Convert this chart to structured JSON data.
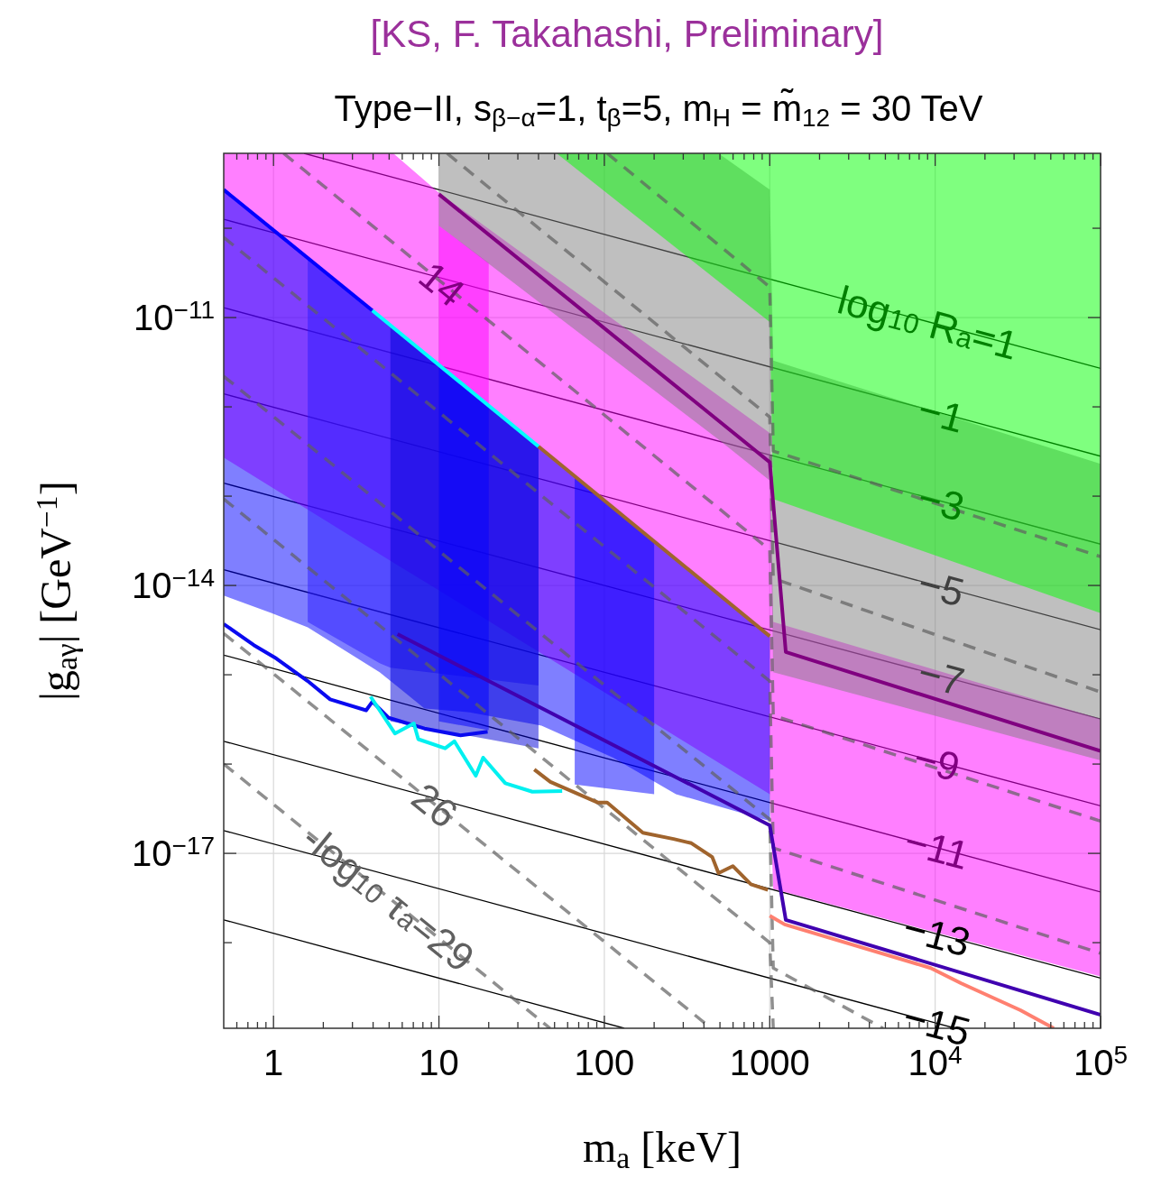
{
  "chart_data": {
    "type": "line",
    "title": "[KS, F. Takahashi, Preliminary]",
    "subtitle": "Type−II, s$_{β−α}$=1, t$_{β}$=5, m$_{H}$ = m̃$_{12}$ = 30 TeV",
    "xlabel": "m$_{a}$ [keV]",
    "ylabel": "|g$_{aγ}$| [GeV$^{−1}$]",
    "log": "xy",
    "grid": true,
    "xlim": [
      0.5,
      100000
    ],
    "ylim": [
      1.1e-19,
      6.9e-10
    ],
    "xticks": [
      {
        "value": 0.6,
        "label": null
      },
      {
        "value": 0.7,
        "label": null
      },
      {
        "value": 0.8,
        "label": null
      },
      {
        "value": 0.9,
        "label": null
      },
      1,
      {
        "value": 2,
        "label": null
      },
      {
        "value": 3,
        "label": null
      },
      {
        "value": 4,
        "label": null
      },
      {
        "value": 5,
        "label": null
      },
      {
        "value": 6,
        "label": null
      },
      {
        "value": 7,
        "label": null
      },
      {
        "value": 8,
        "label": null
      },
      {
        "value": 9,
        "label": null
      },
      10,
      {
        "value": 20,
        "label": null
      },
      {
        "value": 30,
        "label": null
      },
      {
        "value": 40,
        "label": null
      },
      {
        "value": 50,
        "label": null
      },
      {
        "value": 60,
        "label": null
      },
      {
        "value": 70,
        "label": null
      },
      {
        "value": 80,
        "label": null
      },
      {
        "value": 90,
        "label": null
      },
      100,
      {
        "value": 200,
        "label": null
      },
      {
        "value": 300,
        "label": null
      },
      {
        "value": 400,
        "label": null
      },
      {
        "value": 500,
        "label": null
      },
      {
        "value": 600,
        "label": null
      },
      {
        "value": 700,
        "label": null
      },
      {
        "value": 800,
        "label": null
      },
      {
        "value": 900,
        "label": null
      },
      1000,
      {
        "value": 2000,
        "label": null
      },
      {
        "value": 3000,
        "label": null
      },
      {
        "value": 4000,
        "label": null
      },
      {
        "value": 5000,
        "label": null
      },
      {
        "value": 6000,
        "label": null
      },
      {
        "value": 7000,
        "label": null
      },
      {
        "value": 8000,
        "label": null
      },
      {
        "value": 9000,
        "label": null
      },
      {
        "value": 10000,
        "label": "10$^{4}$"
      },
      {
        "value": 20000,
        "label": null
      },
      {
        "value": 30000,
        "label": null
      },
      {
        "value": 40000,
        "label": null
      },
      {
        "value": 50000,
        "label": null
      },
      {
        "value": 60000,
        "label": null
      },
      {
        "value": 70000,
        "label": null
      },
      {
        "value": 80000,
        "label": null
      },
      {
        "value": 90000,
        "label": null
      },
      {
        "value": 100000,
        "label": "10$^{5}$"
      }
    ],
    "yticks": [
      {
        "value": 1e-18,
        "label": null
      },
      {
        "value": 1e-17,
        "label": "10$^{−17}$"
      },
      {
        "value": 1e-16,
        "label": null
      },
      {
        "value": 1e-15,
        "label": null
      },
      {
        "value": 1e-14,
        "label": "10$^{−14}$"
      },
      {
        "value": 1e-13,
        "label": null
      },
      {
        "value": 1e-12,
        "label": null
      },
      {
        "value": 1e-11,
        "label": "10$^{−11}$"
      },
      {
        "value": 1e-10,
        "label": null
      }
    ],
    "series": [
      {
        "color": "#000000",
        "x": [
          1.53,
          100000
        ],
        "values": [
          6.9e-10,
          2.7e-12
        ]
      },
      {
        "color": "#000000",
        "x": [
          0.5,
          100000
        ],
        "values": [
          1.26e-10,
          2.8e-13
        ]
      },
      {
        "color": "#000000",
        "x": [
          0.5,
          100000
        ],
        "values": [
          1.29e-11,
          2.9e-14
        ]
      },
      {
        "color": "#000000",
        "x": [
          0.5,
          100000
        ],
        "values": [
          1.4e-12,
          3.2e-15
        ]
      },
      {
        "color": "#000000",
        "x": [
          0.5,
          100000
        ],
        "values": [
          1.4e-13,
          3.2e-16
        ]
      },
      {
        "color": "#000000",
        "x": [
          0.5,
          100000
        ],
        "values": [
          1.5e-14,
          3.4e-17
        ]
      },
      {
        "color": "#000000",
        "x": [
          0.5,
          100000
        ],
        "values": [
          1.66e-15,
          3.7e-18
        ]
      },
      {
        "color": "#000000",
        "x": [
          0.5,
          100000
        ],
        "values": [
          1.8e-16,
          4e-19
        ]
      },
      {
        "color": "#000000",
        "x": [
          0.5,
          13200
        ],
        "values": [
          1.8e-17,
          1.1e-19
        ]
      },
      {
        "color": "#000000",
        "x": [
          0.5,
          132
        ],
        "values": [
          1.8e-18,
          1.1e-19
        ]
      },
      {
        "color": "#ff00ff",
        "x": [
          0.5,
          5.3,
          10,
          1000,
          1050,
          100000
        ],
        "values": [
          null,
          null,
          null,
          null,
          null,
          null
        ],
        "upper": [
          6.9e-10,
          6.9e-10,
          2.5e-10,
          5.1e-13,
          3.9e-15,
          3.2e-16
        ],
        "lower": [
          2.7e-13,
          1.8e-14,
          8.8e-15,
          4.6e-17,
          4e-18,
          4.2e-19
        ]
      },
      {
        "color": "#ff00ff",
        "x": [
          10,
          20
        ],
        "values": [
          null,
          null
        ],
        "upper": [
          1.07e-10,
          4.1e-11
        ],
        "lower": [
          2.9e-12,
          1.05e-12
        ]
      },
      {
        "color": "#808080",
        "x": [
          10,
          490,
          1000,
          1050,
          100000
        ],
        "values": [
          null,
          null,
          null,
          null,
          null
        ],
        "upper": [
          6.9e-10,
          6.9e-10,
          2.7e-10,
          3.3e-12,
          2.3e-13
        ],
        "lower": [
          1.07e-10,
          4.3e-13,
          1.5e-13,
          1.07e-15,
          1.1e-16
        ]
      },
      {
        "color": "#00ff00",
        "x": [
          51.5,
          1000,
          1050,
          100000
        ],
        "values": [
          null,
          null,
          null,
          null
        ],
        "upper": [
          6.9e-10,
          6.9e-10,
          6.9e-10,
          6.9e-10
        ],
        "lower": [
          6.9e-10,
          8.9e-12,
          9.3e-14,
          4.9e-15
        ]
      },
      {
        "color": "#0000ff",
        "x": [
          0.5,
          0.975,
          1.61,
          4.38,
          8.18,
          15.3,
          41.7,
          113,
          271,
          1000
        ],
        "values": [
          null,
          null,
          null,
          null,
          null,
          null,
          null,
          null,
          null,
          null
        ],
        "upper": [
          2.7e-10,
          1e-10,
          4.8e-11,
          1.04e-11,
          4e-12,
          1.56e-12,
          3.4e-13,
          7.5e-14,
          2e-14,
          2.7e-15
        ],
        "lower": [
          7.7e-15,
          4.9e-15,
          3.4e-15,
          1.07e-15,
          4.2e-16,
          3.8e-16,
          2.7e-16,
          1.18e-16,
          4.6e-17,
          2.3e-17
        ]
      },
      {
        "color": "#2a1aff",
        "x": [
          1.61,
          4.38,
          5.09,
          40
        ],
        "values": [
          null,
          null,
          null,
          null
        ],
        "upper": [
          4.8e-11,
          1.04e-11,
          8.3e-12,
          3.6e-13
        ],
        "lower": [
          3.9e-15,
          1.35e-15,
          1.2e-15,
          7.6e-16
        ]
      },
      {
        "color": "#0000d8",
        "x": [
          5.09,
          40
        ],
        "values": [
          null,
          null
        ],
        "upper": [
          8.3e-12,
          3.6e-13
        ],
        "lower": [
          3e-16,
          1.5e-16
        ]
      },
      {
        "color": "#0000ff",
        "x": [
          10,
          20
        ],
        "values": [
          null,
          null
        ],
        "upper": [
          2.9e-12,
          1.05e-12
        ],
        "lower": [
          3e-16,
          2.4e-16
        ]
      },
      {
        "color": "#0000ff",
        "x": [
          66.2,
          200
        ],
        "values": [
          null,
          null
        ],
        "upper": [
          1.7e-13,
          3.2e-14
        ],
        "lower": [
          5.9e-17,
          4.6e-17
        ]
      },
      {
        "color": "#606060",
        "line_style": "dashed",
        "x": [
          104,
          1000,
          1050,
          100000
        ],
        "values": [
          6.9e-10,
          2.2e-11,
          3.2e-13,
          2.1e-14
        ]
      },
      {
        "color": "#606060",
        "line_style": "dashed",
        "x": [
          11.2,
          1000,
          1050,
          100000
        ],
        "values": [
          6.9e-10,
          7.7e-13,
          1.2e-14,
          6.4e-16
        ]
      },
      {
        "color": "#606060",
        "line_style": "dashed",
        "x": [
          1.15,
          1000,
          1050,
          100000
        ],
        "values": [
          6.9e-10,
          2.5e-14,
          3.5e-16,
          2.3e-17
        ]
      },
      {
        "color": "#606060",
        "line_style": "dashed",
        "x": [
          0.5,
          1000,
          1050,
          100000
        ],
        "values": [
          7.9e-11,
          8.5e-16,
          1.15e-17,
          7.6e-19
        ]
      },
      {
        "color": "#606060",
        "line_style": "dashed",
        "x": [
          0.5,
          1000,
          1050,
          4840
        ],
        "values": [
          2.2e-12,
          2.4e-17,
          5.2e-19,
          1.1e-19
        ]
      },
      {
        "color": "#606060",
        "line_style": "dashed",
        "x": [
          0.5,
          1000,
          1050
        ],
        "values": [
          9.3e-14,
          1e-18,
          1.1e-19
        ]
      },
      {
        "color": "#606060",
        "line_style": "dashed",
        "x": [
          0.5,
          443
        ],
        "values": [
          2.9e-15,
          1.1e-19
        ]
      },
      {
        "color": "#606060",
        "line_style": "dashed",
        "x": [
          0.5,
          47
        ],
        "values": [
          1e-16,
          1.1e-19
        ]
      },
      {
        "color": "#4000b0",
        "x": [
          5.62,
          1000,
          1250,
          100000
        ],
        "values": [
          2.85e-15,
          2.06e-17,
          1.8e-18,
          1.56e-19
        ]
      },
      {
        "color": "#800080",
        "x": [
          10,
          1000,
          1250,
          100000
        ],
        "values": [
          2.4e-10,
          2.4e-13,
          1.8e-15,
          1.4e-16
        ]
      },
      {
        "color": "#0000ff",
        "x": [
          0.5,
          3.96
        ],
        "values": [
          2.7e-10,
          1.2e-11
        ]
      },
      {
        "color": "#00ffff",
        "x": [
          3.96,
          40
        ],
        "values": [
          1.2e-11,
          3.6e-13
        ]
      },
      {
        "color": "#a0642d",
        "x": [
          40,
          1000
        ],
        "values": [
          3.6e-13,
          2.7e-15
        ]
      },
      {
        "color": "#ff8070",
        "x": [
          1000,
          1230,
          9400,
          14400,
          32800,
          52100
        ],
        "values": [
          2e-18,
          1.6e-18,
          5.2e-19,
          3.5e-19,
          1.75e-19,
          1.1e-19
        ]
      },
      {
        "color": "#0a0af0",
        "x": [
          0.5,
          0.76,
          1.04,
          1.61,
          2.2,
          3.63,
          3.96,
          4.96,
          8.18,
          13.5,
          19.7
        ],
        "values": [
          3.7e-15,
          2.15e-15,
          1.52e-15,
          8.5e-16,
          5.3e-16,
          4e-16,
          5e-16,
          3.3e-16,
          2.5e-16,
          2.1e-16,
          2.3e-16
        ]
      },
      {
        "color": "#00f0f0",
        "x": [
          3.86,
          5.42,
          7.05,
          7.5,
          10.9,
          12.4,
          16.7,
          18.5,
          25.2,
          36.7,
          55.6
        ],
        "values": [
          5.7e-16,
          2.2e-16,
          2.85e-16,
          1.9e-16,
          1.5e-16,
          1.8e-16,
          7.4e-17,
          1.18e-16,
          6.1e-17,
          4.9e-17,
          5e-17
        ]
      },
      {
        "color": "#a0642d",
        "x": [
          37.7,
          47.2,
          91.6,
          104,
          171,
          262,
          336,
          449,
          490,
          598,
          769,
          975
        ],
        "values": [
          8.7e-17,
          6.3e-17,
          3.7e-17,
          3.7e-17,
          1.7e-17,
          1.45e-17,
          1.3e-17,
          9.1e-18,
          6e-18,
          7.2e-18,
          4.5e-18,
          3.9e-18
        ]
      }
    ],
    "annotations": [
      {
        "text": "log$_{10}$ R$_{a}$=1",
        "x": 9060,
        "y": 8.9e-12
      },
      {
        "text": "−1",
        "x": 10900,
        "y": 8.5e-13
      },
      {
        "text": "−3",
        "x": 10900,
        "y": 8.7e-14
      },
      {
        "text": "−5",
        "x": 10900,
        "y": 9.6e-15
      },
      {
        "text": "−7",
        "x": 10900,
        "y": 9.6e-16
      },
      {
        "text": "−9",
        "x": 10250,
        "y": 1.06e-16
      },
      {
        "text": "−11",
        "x": 10250,
        "y": 1.16e-17
      },
      {
        "text": "−13",
        "x": 10250,
        "y": 1.24e-18
      },
      {
        "text": "−15",
        "x": 10250,
        "y": 1.24e-19
      },
      {
        "text": "14",
        "x": 10.5,
        "y": 2.4e-11
      },
      {
        "text": "26",
        "x": 9.5,
        "y": 3.5e-17
      },
      {
        "text": "-log$_{10}$ τ$_{a}$=29",
        "x": 4.96,
        "y": 3.2e-18
      }
    ]
  }
}
